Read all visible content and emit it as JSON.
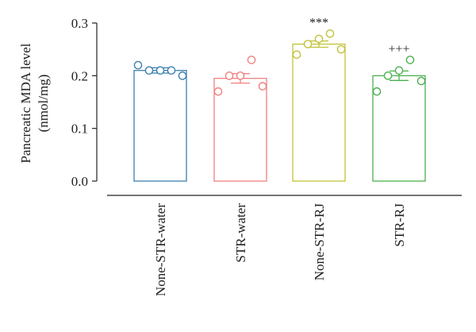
{
  "chart_data": {
    "type": "bar",
    "ylabel_line1": "Pancreatic MDA level",
    "ylabel_line2": "(nmol/mg)",
    "ylim": [
      0,
      0.3
    ],
    "yticks": [
      {
        "value": 0.0,
        "label": "0.0"
      },
      {
        "value": 0.1,
        "label": "0.1"
      },
      {
        "value": 0.2,
        "label": "0.2"
      },
      {
        "value": 0.3,
        "label": "0.3"
      }
    ],
    "grid": false,
    "bars": [
      {
        "category": "None-STR-water",
        "value": 0.21,
        "error": 0.005,
        "color": "#3a7fb0",
        "points": [
          0.21,
          0.21,
          0.22,
          0.2,
          0.21
        ],
        "significance": ""
      },
      {
        "category": "STR-water",
        "value": 0.195,
        "error": 0.009,
        "color": "#f08080",
        "points": [
          0.2,
          0.23,
          0.17,
          0.18,
          0.2
        ],
        "significance": ""
      },
      {
        "category": "None-STR-RJ",
        "value": 0.26,
        "error": 0.006,
        "color": "#c2c23a",
        "points": [
          0.26,
          0.28,
          0.24,
          0.25,
          0.27
        ],
        "significance": "***"
      },
      {
        "category": "STR-RJ",
        "value": 0.2,
        "error": 0.009,
        "color": "#4bb04f",
        "points": [
          0.2,
          0.23,
          0.17,
          0.19,
          0.21
        ],
        "significance": "+++"
      }
    ]
  }
}
